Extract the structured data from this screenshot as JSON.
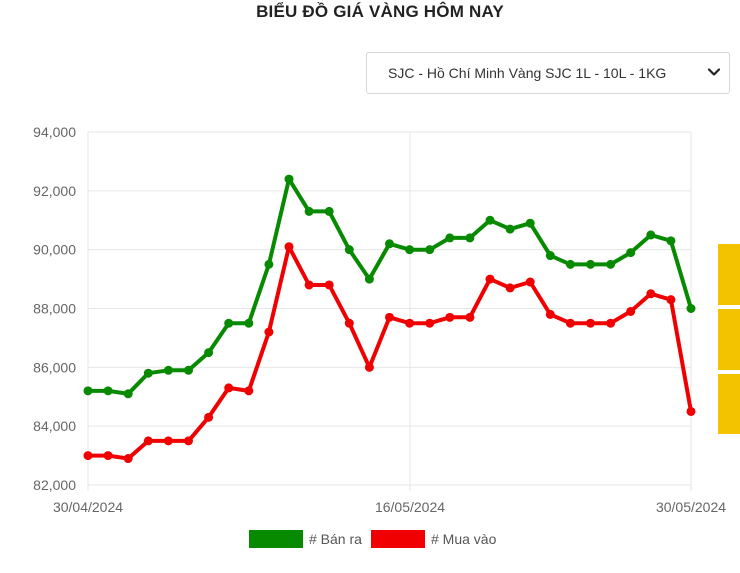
{
  "page": {
    "title": "BIỂU ĐỒ GIÁ VÀNG HÔM NAY"
  },
  "selector": {
    "value": "SJC - Hồ Chí Minh Vàng SJC 1L - 10L - 1KG",
    "icon": "chevron-down-icon"
  },
  "colors": {
    "sell": "#078a00",
    "buy": "#f00000",
    "side_tabs": "#f3c300",
    "grid": "#e6e6e6"
  },
  "chart_data": {
    "type": "line",
    "title": "BIỂU ĐỒ GIÁ VÀNG HÔM NAY",
    "xlabel": "",
    "ylabel": "",
    "x_ticks": [
      "30/04/2024",
      "16/05/2024",
      "30/05/2024"
    ],
    "y_ticks": [
      "82,000",
      "84,000",
      "86,000",
      "88,000",
      "90,000",
      "92,000",
      "94,000"
    ],
    "ylim": [
      82000,
      94000
    ],
    "grid": true,
    "legend_position": "bottom",
    "series": [
      {
        "name": "# Bán ra",
        "color": "#078a00",
        "values": [
          85200,
          85200,
          85100,
          85800,
          85900,
          85900,
          86500,
          87500,
          87500,
          89500,
          92400,
          91300,
          91300,
          90000,
          89000,
          90200,
          90000,
          90000,
          90400,
          90400,
          91000,
          90700,
          90900,
          89800,
          89500,
          89500,
          89500,
          89900,
          90500,
          90300,
          88000
        ]
      },
      {
        "name": "# Mua vào",
        "color": "#f00000",
        "values": [
          83000,
          83000,
          82900,
          83500,
          83500,
          83500,
          84300,
          85300,
          85200,
          87200,
          90100,
          88800,
          88800,
          87500,
          86000,
          87700,
          87500,
          87500,
          87700,
          87700,
          89000,
          88700,
          88900,
          87800,
          87500,
          87500,
          87500,
          87900,
          88500,
          88300,
          84500
        ]
      }
    ]
  }
}
